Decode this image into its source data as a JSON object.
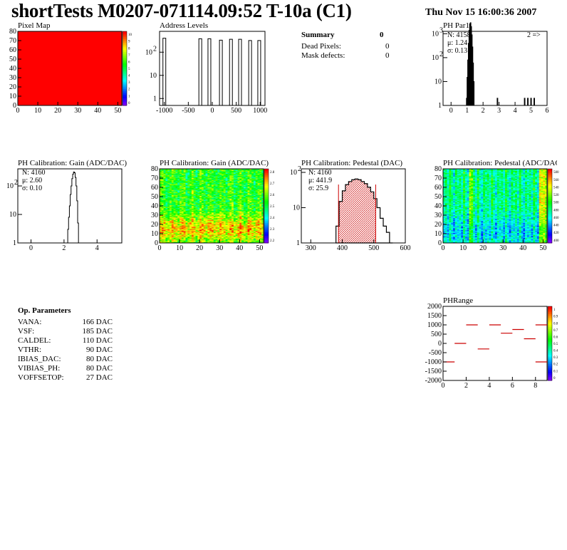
{
  "title": "shortTests M0207-071114.09:52 T-10a (C1)",
  "date": "Thu Nov 15 16:00:36 2007",
  "summary": {
    "heading": "Summary",
    "heading_value": "0",
    "rows": [
      {
        "label": "Dead Pixels:",
        "value": "0"
      },
      {
        "label": "Mask defects:",
        "value": "0"
      }
    ]
  },
  "op_params": {
    "heading": "Op. Parameters",
    "rows": [
      {
        "label": "VANA:",
        "value": "166 DAC"
      },
      {
        "label": "VSF:",
        "value": "185 DAC"
      },
      {
        "label": "CALDEL:",
        "value": "110 DAC"
      },
      {
        "label": "VTHR:",
        "value": "90 DAC"
      },
      {
        "label": "IBIAS_DAC:",
        "value": "80 DAC"
      },
      {
        "label": "VIBIAS_PH:",
        "value": "80 DAC"
      },
      {
        "label": "VOFFSETOP:",
        "value": "27 DAC"
      }
    ]
  },
  "colors": {
    "pixel_map_fill": "#ff0000",
    "pedestal_hatch": "#cc0000",
    "phrange_marker": "#cc0000",
    "stat_red": "#ff0000"
  },
  "chart_data": [
    {
      "id": "pixel_map",
      "type": "heatmap",
      "title": "Pixel Map",
      "xlim": [
        0,
        52
      ],
      "ylim": [
        0,
        80
      ],
      "xticks": [
        "0",
        "10",
        "20",
        "30",
        "40",
        "50"
      ],
      "yticks": [
        "0",
        "10",
        "20",
        "30",
        "40",
        "50",
        "60",
        "70",
        "80"
      ],
      "uniform_value": 10,
      "palette_ticks": [
        "0",
        "1",
        "2",
        "3",
        "4",
        "5",
        "6",
        "7",
        "8",
        "9",
        "10"
      ]
    },
    {
      "id": "address_levels",
      "type": "bar",
      "title": "Address Levels",
      "xlim": [
        -1100,
        1100
      ],
      "yscale": "log",
      "xticks": [
        "-1000",
        "-500",
        "0",
        "500",
        "1000"
      ],
      "yticks": [
        "1",
        "10",
        "10^2"
      ],
      "peaks": [
        {
          "x": -1000,
          "count": 400
        },
        {
          "x": -250,
          "count": 380
        },
        {
          "x": -60,
          "count": 380
        },
        {
          "x": 180,
          "count": 330
        },
        {
          "x": 390,
          "count": 360
        },
        {
          "x": 580,
          "count": 360
        },
        {
          "x": 790,
          "count": 320
        },
        {
          "x": 980,
          "count": 320
        }
      ]
    },
    {
      "id": "ph_par1",
      "type": "bar",
      "title": "PH Par1",
      "xlim": [
        -0.5,
        6
      ],
      "yscale": "log",
      "xticks": [
        "0",
        "1",
        "2",
        "3",
        "4",
        "5",
        "6"
      ],
      "yticks": [
        "1",
        "10",
        "10^2",
        "10^3"
      ],
      "stats": {
        "N": "4158",
        "mu": "1.24",
        "sigma": "0.13"
      },
      "overflow_label": "2 =>",
      "bins": [
        {
          "x": 0.98,
          "count": 2
        },
        {
          "x": 1.02,
          "count": 15
        },
        {
          "x": 1.06,
          "count": 80
        },
        {
          "x": 1.1,
          "count": 400
        },
        {
          "x": 1.14,
          "count": 1400
        },
        {
          "x": 1.18,
          "count": 2600
        },
        {
          "x": 1.22,
          "count": 2900
        },
        {
          "x": 1.26,
          "count": 2000
        },
        {
          "x": 1.3,
          "count": 900
        },
        {
          "x": 1.34,
          "count": 280
        },
        {
          "x": 1.38,
          "count": 60
        },
        {
          "x": 1.42,
          "count": 10
        },
        {
          "x": 2.9,
          "count": 2
        },
        {
          "x": 4.6,
          "count": 2
        },
        {
          "x": 4.8,
          "count": 2
        },
        {
          "x": 5.0,
          "count": 2
        },
        {
          "x": 5.2,
          "count": 2
        }
      ]
    },
    {
      "id": "gain_1d",
      "type": "line",
      "title": "PH Calibration: Gain (ADC/DAC)",
      "xlim": [
        -0.8,
        5.5
      ],
      "yscale": "log",
      "xticks": [
        "0",
        "2",
        "4"
      ],
      "yticks": [
        "1",
        "10",
        "10^2"
      ],
      "stats": {
        "N": "4160",
        "mu": "2.60",
        "sigma": "0.10"
      },
      "bins": [
        {
          "x": 2.2,
          "count": 1
        },
        {
          "x": 2.25,
          "count": 3
        },
        {
          "x": 2.3,
          "count": 8
        },
        {
          "x": 2.35,
          "count": 20
        },
        {
          "x": 2.4,
          "count": 50
        },
        {
          "x": 2.45,
          "count": 100
        },
        {
          "x": 2.5,
          "count": 180
        },
        {
          "x": 2.55,
          "count": 260
        },
        {
          "x": 2.6,
          "count": 310
        },
        {
          "x": 2.65,
          "count": 290
        },
        {
          "x": 2.7,
          "count": 200
        },
        {
          "x": 2.75,
          "count": 100
        },
        {
          "x": 2.8,
          "count": 30
        },
        {
          "x": 2.85,
          "count": 5
        },
        {
          "x": 2.9,
          "count": 1
        }
      ]
    },
    {
      "id": "gain_map",
      "type": "heatmap",
      "title": "PH Calibration: Gain (ADC/DAC)",
      "xlim": [
        0,
        52
      ],
      "ylim": [
        0,
        80
      ],
      "xticks": [
        "0",
        "10",
        "20",
        "30",
        "40",
        "50"
      ],
      "yticks": [
        "0",
        "10",
        "20",
        "30",
        "40",
        "50",
        "60",
        "70",
        "80"
      ],
      "zlim": [
        2.1,
        2.9
      ],
      "palette_ticks": [
        "2.2",
        "2.3",
        "2.4",
        "2.5",
        "2.6",
        "2.7",
        "2.8"
      ]
    },
    {
      "id": "pedestal_1d",
      "type": "bar",
      "title": "PH Calibration: Pedestal (DAC)",
      "xlim": [
        270,
        600
      ],
      "yscale": "log",
      "xticks": [
        "300",
        "400",
        "500",
        "600"
      ],
      "yticks": [
        "1",
        "10",
        "10^2"
      ],
      "stats": {
        "N": "4160",
        "mu": "441.9",
        "sigma": "25.9"
      },
      "range_markers": [
        388,
        506
      ],
      "bins": [
        {
          "x": 385,
          "count": 3
        },
        {
          "x": 395,
          "count": 15
        },
        {
          "x": 405,
          "count": 30
        },
        {
          "x": 415,
          "count": 45
        },
        {
          "x": 425,
          "count": 55
        },
        {
          "x": 435,
          "count": 62
        },
        {
          "x": 445,
          "count": 65
        },
        {
          "x": 455,
          "count": 62
        },
        {
          "x": 465,
          "count": 55
        },
        {
          "x": 475,
          "count": 48
        },
        {
          "x": 485,
          "count": 38
        },
        {
          "x": 495,
          "count": 28
        },
        {
          "x": 505,
          "count": 18
        },
        {
          "x": 515,
          "count": 10
        },
        {
          "x": 525,
          "count": 5
        },
        {
          "x": 535,
          "count": 3
        },
        {
          "x": 545,
          "count": 2
        },
        {
          "x": 555,
          "count": 1
        }
      ]
    },
    {
      "id": "pedestal_map",
      "type": "heatmap",
      "title": "PH Calibration: Pedestal (ADC/DAC)",
      "xlim": [
        0,
        52
      ],
      "ylim": [
        0,
        80
      ],
      "xticks": [
        "0",
        "10",
        "20",
        "30",
        "40",
        "50"
      ],
      "yticks": [
        "0",
        "10",
        "20",
        "30",
        "40",
        "50",
        "60",
        "70",
        "80"
      ],
      "zlim": [
        380,
        600
      ],
      "palette_ticks": [
        "400",
        "420",
        "440",
        "460",
        "480",
        "500",
        "520",
        "540",
        "560",
        "580"
      ]
    },
    {
      "id": "ph_range",
      "type": "scatter",
      "title": "PHRange",
      "xlim": [
        0,
        9
      ],
      "ylim": [
        -2000,
        2000
      ],
      "xticks": [
        "0",
        "2",
        "4",
        "6",
        "8"
      ],
      "yticks": [
        "-2000",
        "-1500",
        "-1000",
        "-500",
        "0",
        "500",
        "1000",
        "1500",
        "2000"
      ],
      "palette_ticks": [
        "0",
        "0.1",
        "0.2",
        "0.3",
        "0.4",
        "0.5",
        "0.6",
        "0.7",
        "0.8",
        "0.9",
        "1"
      ],
      "segments": [
        {
          "x": 0.5,
          "y": -1000
        },
        {
          "x": 1.5,
          "y": 0
        },
        {
          "x": 2.5,
          "y": 1000
        },
        {
          "x": 3.5,
          "y": -300
        },
        {
          "x": 4.5,
          "y": 1000
        },
        {
          "x": 5.5,
          "y": 550
        },
        {
          "x": 6.5,
          "y": 750
        },
        {
          "x": 7.5,
          "y": 250
        },
        {
          "x": 8.5,
          "y": 1000
        },
        {
          "x": 8.5,
          "y": -1000
        }
      ]
    }
  ]
}
